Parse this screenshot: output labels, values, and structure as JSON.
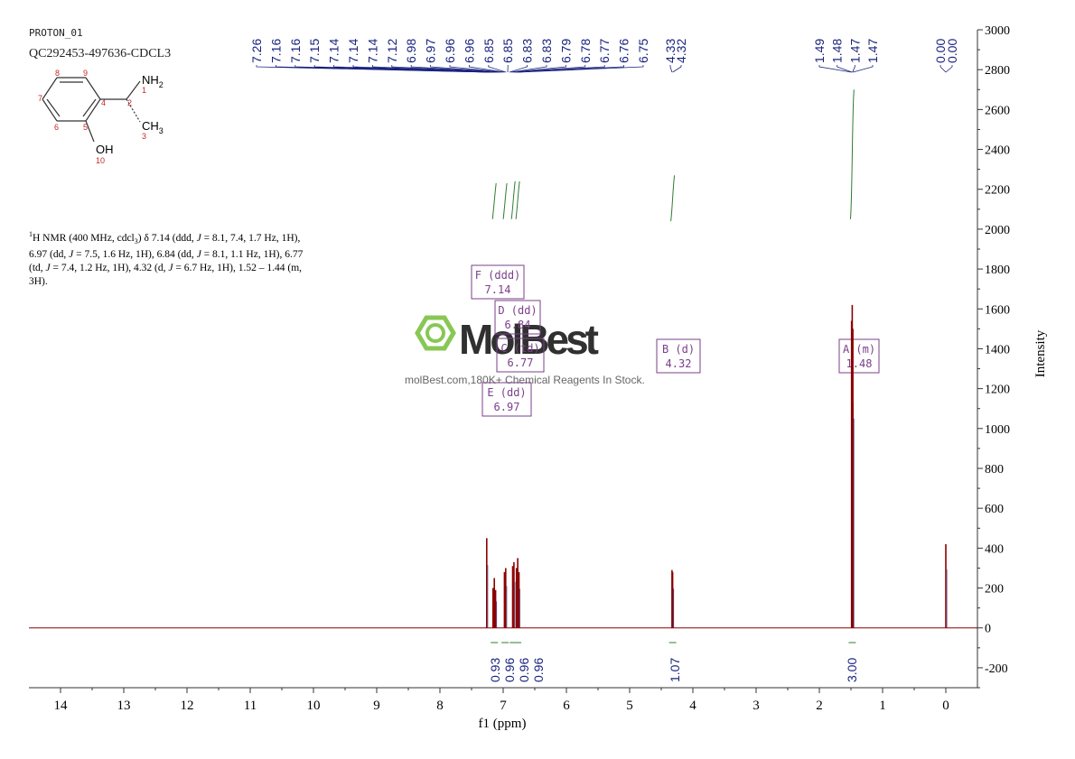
{
  "header": {
    "sample_name": "PROTON_01",
    "sample_id": "QC292453-497636-CDCL3"
  },
  "molecule": {
    "atoms": {
      "nh2": "NH",
      "nh2_sub": "2",
      "ch3": "CH",
      "ch3_sub": "3",
      "oh": "OH",
      "numbers": [
        "1",
        "2",
        "3",
        "4",
        "5",
        "6",
        "7",
        "8",
        "9",
        "10"
      ]
    }
  },
  "nmr_text": {
    "sup": "1",
    "line1": "H NMR (400 MHz, cdcl",
    "sub3": "3",
    "line1b": ") δ 7.14 (ddd, ",
    "j": "J",
    "l1c": " = 8.1, 7.4, 1.7 Hz, 1H),",
    "l2a": "6.97 (dd, ",
    "l2b": " = 7.5, 1.6 Hz, 1H), 6.84 (dd, ",
    "l2c": " = 8.1, 1.1 Hz, 1H), 6.77",
    "l3a": "(td, ",
    "l3b": " = 7.4, 1.2 Hz, 1H), 4.32 (d, ",
    "l3c": " = 6.7 Hz, 1H), 1.52 – 1.44 (m,",
    "l4": "3H)."
  },
  "watermark": {
    "brand": "MolBest",
    "tagline": "molBest.com,180K+ Chemical Reagents In Stock."
  },
  "colors": {
    "spectrum": "#8b0000",
    "peak_labels": "#1a237e",
    "integral": "#2e7d32",
    "multiplet_box": "#7b3f8a",
    "watermark_green": "#7cc242",
    "axis": "#333333"
  },
  "chart_data": {
    "type": "line",
    "xlabel": "f1 (ppm)",
    "ylabel": "Intensity",
    "xlim": [
      14.5,
      -0.5
    ],
    "ylim": [
      -300,
      3000
    ],
    "x_ticks": [
      "14",
      "13",
      "12",
      "11",
      "10",
      "9",
      "8",
      "7",
      "6",
      "5",
      "4",
      "3",
      "2",
      "1",
      "0"
    ],
    "x_tick_values": [
      14,
      13,
      12,
      11,
      10,
      9,
      8,
      7,
      6,
      5,
      4,
      3,
      2,
      1,
      0
    ],
    "y_ticks": [
      "-200",
      "0",
      "200",
      "400",
      "600",
      "800",
      "1000",
      "1200",
      "1400",
      "1600",
      "1800",
      "2000",
      "2200",
      "2400",
      "2600",
      "2800",
      "3000"
    ],
    "y_tick_values": [
      -200,
      0,
      200,
      400,
      600,
      800,
      1000,
      1200,
      1400,
      1600,
      1800,
      2000,
      2200,
      2400,
      2600,
      2800,
      3000
    ],
    "peaks": [
      {
        "ppm": 7.26,
        "height": 450
      },
      {
        "ppm": 7.16,
        "height": 200
      },
      {
        "ppm": 7.14,
        "height": 250
      },
      {
        "ppm": 7.12,
        "height": 190
      },
      {
        "ppm": 6.98,
        "height": 280
      },
      {
        "ppm": 6.96,
        "height": 300
      },
      {
        "ppm": 6.85,
        "height": 310
      },
      {
        "ppm": 6.83,
        "height": 330
      },
      {
        "ppm": 6.79,
        "height": 300
      },
      {
        "ppm": 6.77,
        "height": 350
      },
      {
        "ppm": 6.75,
        "height": 280
      },
      {
        "ppm": 4.33,
        "height": 290
      },
      {
        "ppm": 4.32,
        "height": 280
      },
      {
        "ppm": 1.49,
        "height": 1540
      },
      {
        "ppm": 1.48,
        "height": 1620
      },
      {
        "ppm": 1.47,
        "height": 1500
      },
      {
        "ppm": 0.0,
        "height": 420
      }
    ],
    "peak_labels": [
      "7.26",
      "7.16",
      "7.16",
      "7.15",
      "7.14",
      "7.14",
      "7.14",
      "7.12",
      "6.98",
      "6.97",
      "6.96",
      "6.96",
      "6.85",
      "6.85",
      "6.83",
      "6.83",
      "6.79",
      "6.78",
      "6.77",
      "6.76",
      "6.75",
      "4.33",
      "4.32",
      "1.49",
      "1.48",
      "1.47",
      "1.47",
      "0.00",
      "0.00"
    ],
    "integrals": [
      {
        "label": "0.93",
        "ppm": 7.14
      },
      {
        "label": "0.96",
        "ppm": 6.97
      },
      {
        "label": "0.96",
        "ppm": 6.84
      },
      {
        "label": "0.96",
        "ppm": 6.77
      },
      {
        "label": "1.07",
        "ppm": 4.32
      },
      {
        "label": "3.00",
        "ppm": 1.48
      }
    ],
    "multiplets": [
      {
        "letter": "F (ddd)",
        "value": "7.14",
        "ppm": 7.14
      },
      {
        "letter": "D (dd)",
        "value": "6.84",
        "ppm": 6.84
      },
      {
        "letter": "C (td)",
        "value": "6.77",
        "ppm": 6.77
      },
      {
        "letter": "E (dd)",
        "value": "6.97",
        "ppm": 6.97
      },
      {
        "letter": "B (d)",
        "value": "4.32",
        "ppm": 4.32
      },
      {
        "letter": "A (m)",
        "value": "1.48",
        "ppm": 1.48
      }
    ]
  }
}
